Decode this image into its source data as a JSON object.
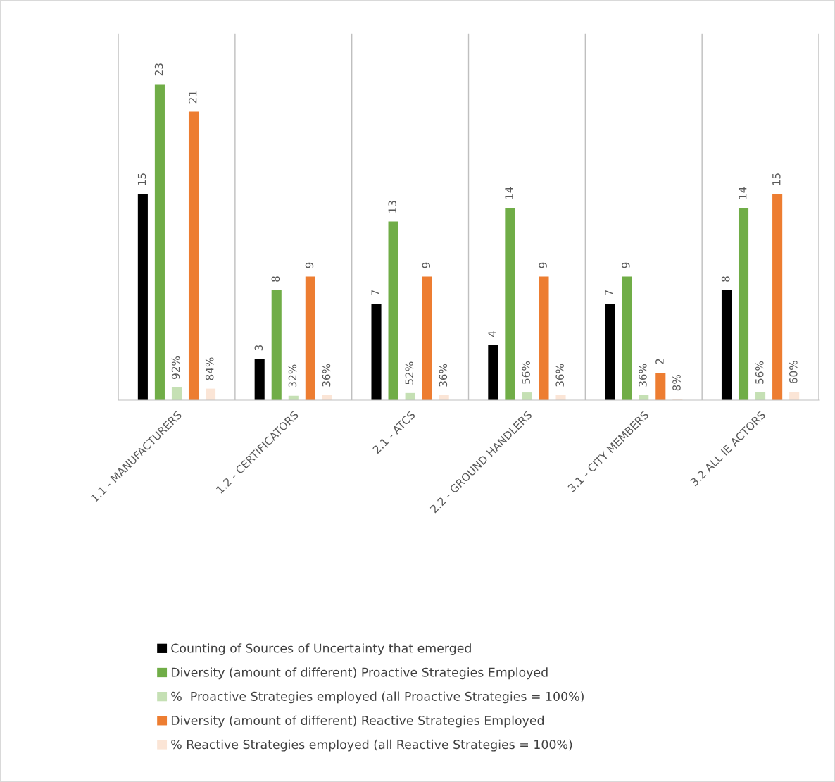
{
  "chart_data": {
    "type": "bar",
    "categories": [
      "1.1 - MANUFACTURERS",
      "1.2 - CERTIFICATORS",
      "2.1 - ATCS",
      "2.2 - GROUND HANDLERS",
      "3.1 - CITY MEMBERS",
      "3.2 ALL IE ACTORS"
    ],
    "series": [
      {
        "name": "Counting of Sources of Uncertainty that emerged",
        "color": "#000000",
        "values": [
          15,
          3,
          7,
          4,
          7,
          8
        ],
        "value_labels": [
          "15",
          "3",
          "7",
          "4",
          "7",
          "8"
        ]
      },
      {
        "name": "Diversity (amount of different) Proactive Strategies Employed",
        "color": "#70ad47",
        "values": [
          23,
          8,
          13,
          14,
          9,
          14
        ],
        "value_labels": [
          "23",
          "8",
          "13",
          "14",
          "9",
          "14"
        ]
      },
      {
        "name": "%  Proactive Strategies employed (all Proactive Strategies = 100%)",
        "color": "#c5e0b4",
        "values": [
          0.92,
          0.32,
          0.52,
          0.56,
          0.36,
          0.56
        ],
        "value_labels": [
          "92%",
          "32%",
          "52%",
          "56%",
          "36%",
          "56%"
        ]
      },
      {
        "name": "Diversity (amount of different) Reactive Strategies Employed",
        "color": "#ed7d31",
        "values": [
          21,
          9,
          9,
          9,
          2,
          15
        ],
        "value_labels": [
          "21",
          "9",
          "9",
          "9",
          "2",
          "15"
        ]
      },
      {
        "name": "% Reactive Strategies employed (all Reactive Strategies = 100%)",
        "color": "#fbe5d6",
        "values": [
          0.84,
          0.36,
          0.36,
          0.36,
          0.08,
          0.6
        ],
        "value_labels": [
          "84%",
          "36%",
          "36%",
          "36%",
          "8%",
          "60%"
        ]
      }
    ],
    "grid": "x",
    "legend": "bottom"
  }
}
